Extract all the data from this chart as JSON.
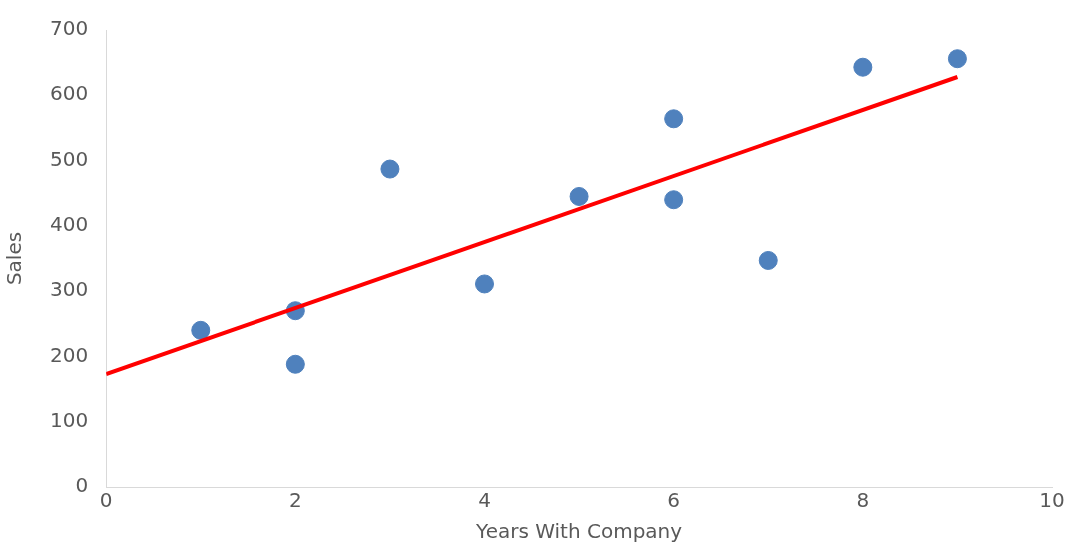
{
  "chart_data": {
    "type": "scatter",
    "xlabel": "Years With Company",
    "ylabel": "Sales",
    "x": [
      1,
      2,
      2,
      3,
      4,
      5,
      6,
      6,
      7,
      8,
      9
    ],
    "series": [
      {
        "color": "#4f81bd",
        "marker": "circle",
        "values": [
          240,
          270,
          188,
          487,
          311,
          445,
          564,
          440,
          347,
          643,
          656
        ]
      },
      {
        "type": "line",
        "color": "#ff0000",
        "marker": "none",
        "x": [
          0,
          9
        ],
        "values": [
          173,
          628
        ]
      }
    ],
    "xlim": [
      0,
      10
    ],
    "xticks": [
      0,
      2,
      4,
      6,
      8,
      10
    ],
    "ylim": [
      0,
      700
    ],
    "yticks": [
      0,
      100,
      200,
      300,
      400,
      500,
      600,
      700
    ],
    "grid": false,
    "legend": false
  }
}
